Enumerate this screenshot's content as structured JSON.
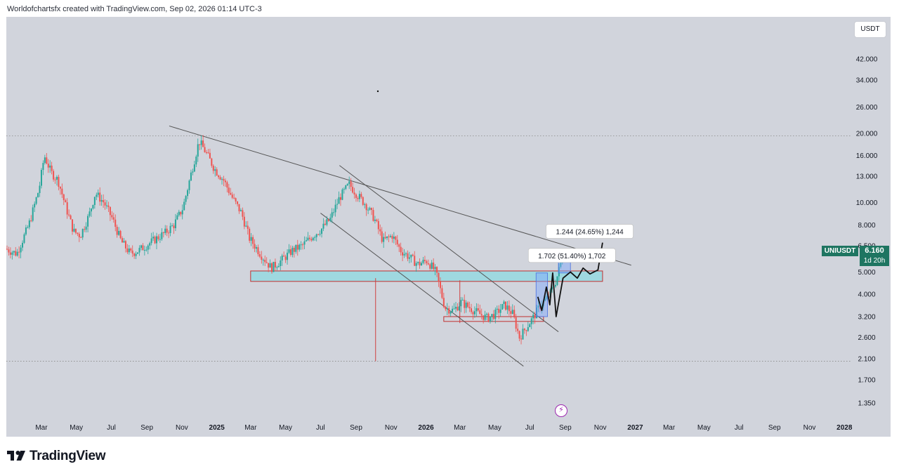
{
  "header": {
    "credit": "Worldofchartsfx created with TradingView.com, Sep 02, 2026 01:14 UTC-3"
  },
  "currency_button": {
    "label": "USDT"
  },
  "price_tag": {
    "symbol": "UNIUSDT",
    "price": "6.160",
    "countdown": "1d 20h"
  },
  "footer": {
    "brand": "TradingView"
  },
  "event_icon": {
    "name": "lightning-icon",
    "glyph": "⚡",
    "color": "#9c27b0"
  },
  "colors": {
    "up": "#26a69a",
    "down": "#ef5350",
    "plot_bg": "#d1d4dc",
    "zone_fill": "#9fd8e0",
    "zone_stroke": "#c03030",
    "trendline": "#555555"
  },
  "chart_data": {
    "type": "candlestick",
    "symbol": "UNIUSDT",
    "scale": "log",
    "y_axis": {
      "ticks": [
        42,
        34,
        26,
        20,
        16,
        13,
        10,
        8,
        6.5,
        5,
        4,
        3.2,
        2.6,
        2.1,
        1.7,
        1.35
      ],
      "tick_labels": [
        "42.000",
        "34.000",
        "26.000",
        "20.000",
        "16.000",
        "13.000",
        "10.000",
        "8.000",
        "6.500",
        "5.000",
        "4.000",
        "3.200",
        "2.600",
        "2.100",
        "1.700",
        "1.350"
      ]
    },
    "x_axis": {
      "ticks": [
        {
          "label": "Mar",
          "date": "2024-03"
        },
        {
          "label": "May",
          "date": "2024-05"
        },
        {
          "label": "Jul",
          "date": "2024-07"
        },
        {
          "label": "Sep",
          "date": "2024-09"
        },
        {
          "label": "Nov",
          "date": "2024-11"
        },
        {
          "label": "2025",
          "date": "2025-01",
          "bold": true
        },
        {
          "label": "Mar",
          "date": "2025-03"
        },
        {
          "label": "May",
          "date": "2025-05"
        },
        {
          "label": "Jul",
          "date": "2025-07"
        },
        {
          "label": "Sep",
          "date": "2025-09"
        },
        {
          "label": "Nov",
          "date": "2025-11"
        },
        {
          "label": "2026",
          "date": "2026-01",
          "bold": true
        },
        {
          "label": "Mar",
          "date": "2026-03"
        },
        {
          "label": "May",
          "date": "2026-05"
        },
        {
          "label": "Jul",
          "date": "2026-07"
        },
        {
          "label": "Sep",
          "date": "2026-09"
        },
        {
          "label": "Nov",
          "date": "2026-11"
        },
        {
          "label": "2027",
          "date": "2027-01",
          "bold": true
        },
        {
          "label": "Mar",
          "date": "2027-03"
        },
        {
          "label": "May",
          "date": "2027-05"
        },
        {
          "label": "Jul",
          "date": "2027-07"
        },
        {
          "label": "Sep",
          "date": "2027-09"
        },
        {
          "label": "Nov",
          "date": "2027-11"
        },
        {
          "label": "2028",
          "date": "2028-01",
          "bold": true
        }
      ]
    },
    "price_path": [
      [
        "2024-01-01",
        6.3
      ],
      [
        "2024-01-20",
        6.0
      ],
      [
        "2024-02-10",
        8.0
      ],
      [
        "2024-02-28",
        11.5
      ],
      [
        "2024-03-08",
        16.0
      ],
      [
        "2024-03-20",
        13.5
      ],
      [
        "2024-04-01",
        12.5
      ],
      [
        "2024-04-15",
        9.5
      ],
      [
        "2024-04-28",
        7.5
      ],
      [
        "2024-05-10",
        7.2
      ],
      [
        "2024-05-25",
        8.8
      ],
      [
        "2024-06-05",
        11.0
      ],
      [
        "2024-06-20",
        10.0
      ],
      [
        "2024-07-05",
        8.5
      ],
      [
        "2024-07-20",
        6.8
      ],
      [
        "2024-08-05",
        6.0
      ],
      [
        "2024-08-20",
        6.2
      ],
      [
        "2024-09-05",
        6.6
      ],
      [
        "2024-09-20",
        7.0
      ],
      [
        "2024-10-05",
        7.4
      ],
      [
        "2024-10-20",
        8.0
      ],
      [
        "2024-11-05",
        9.5
      ],
      [
        "2024-11-18",
        13.0
      ],
      [
        "2024-12-03",
        18.5
      ],
      [
        "2024-12-15",
        16.5
      ],
      [
        "2024-12-30",
        14.0
      ],
      [
        "2025-01-15",
        12.5
      ],
      [
        "2025-01-30",
        10.5
      ],
      [
        "2025-02-15",
        9.0
      ],
      [
        "2025-03-01",
        7.0
      ],
      [
        "2025-03-20",
        6.0
      ],
      [
        "2025-04-08",
        5.2
      ],
      [
        "2025-04-25",
        5.6
      ],
      [
        "2025-05-15",
        6.2
      ],
      [
        "2025-06-01",
        6.5
      ],
      [
        "2025-06-20",
        7.2
      ],
      [
        "2025-07-05",
        7.7
      ],
      [
        "2025-07-20",
        8.5
      ],
      [
        "2025-08-05",
        10.5
      ],
      [
        "2025-08-22",
        12.0
      ],
      [
        "2025-09-05",
        10.8
      ],
      [
        "2025-09-20",
        9.8
      ],
      [
        "2025-10-05",
        8.5
      ],
      [
        "2025-10-20",
        6.8
      ],
      [
        "2025-11-05",
        7.2
      ],
      [
        "2025-11-20",
        6.2
      ],
      [
        "2025-12-05",
        5.8
      ],
      [
        "2025-12-20",
        5.4
      ],
      [
        "2026-01-05",
        5.6
      ],
      [
        "2026-01-20",
        5.0
      ],
      [
        "2026-02-05",
        3.5
      ],
      [
        "2026-02-20",
        3.4
      ],
      [
        "2026-03-05",
        3.7
      ],
      [
        "2026-03-20",
        3.5
      ],
      [
        "2026-04-05",
        3.3
      ],
      [
        "2026-04-20",
        3.15
      ],
      [
        "2026-05-05",
        3.3
      ],
      [
        "2026-05-20",
        3.6
      ],
      [
        "2026-06-03",
        3.3
      ],
      [
        "2026-06-15",
        2.6
      ],
      [
        "2026-06-28",
        2.9
      ],
      [
        "2026-07-10",
        3.2
      ],
      [
        "2026-07-22",
        3.6
      ],
      [
        "2026-08-05",
        3.9
      ],
      [
        "2026-08-18",
        4.6
      ],
      [
        "2026-09-01",
        6.16
      ]
    ],
    "annotations": [
      {
        "type": "label",
        "text": "1.702 (51.40%) 1,702",
        "date": "2026-07-01",
        "price": 5.9
      },
      {
        "type": "label",
        "text": "1.244 (24.65%) 1,244",
        "date": "2026-08-01",
        "price": 7.5
      }
    ]
  }
}
